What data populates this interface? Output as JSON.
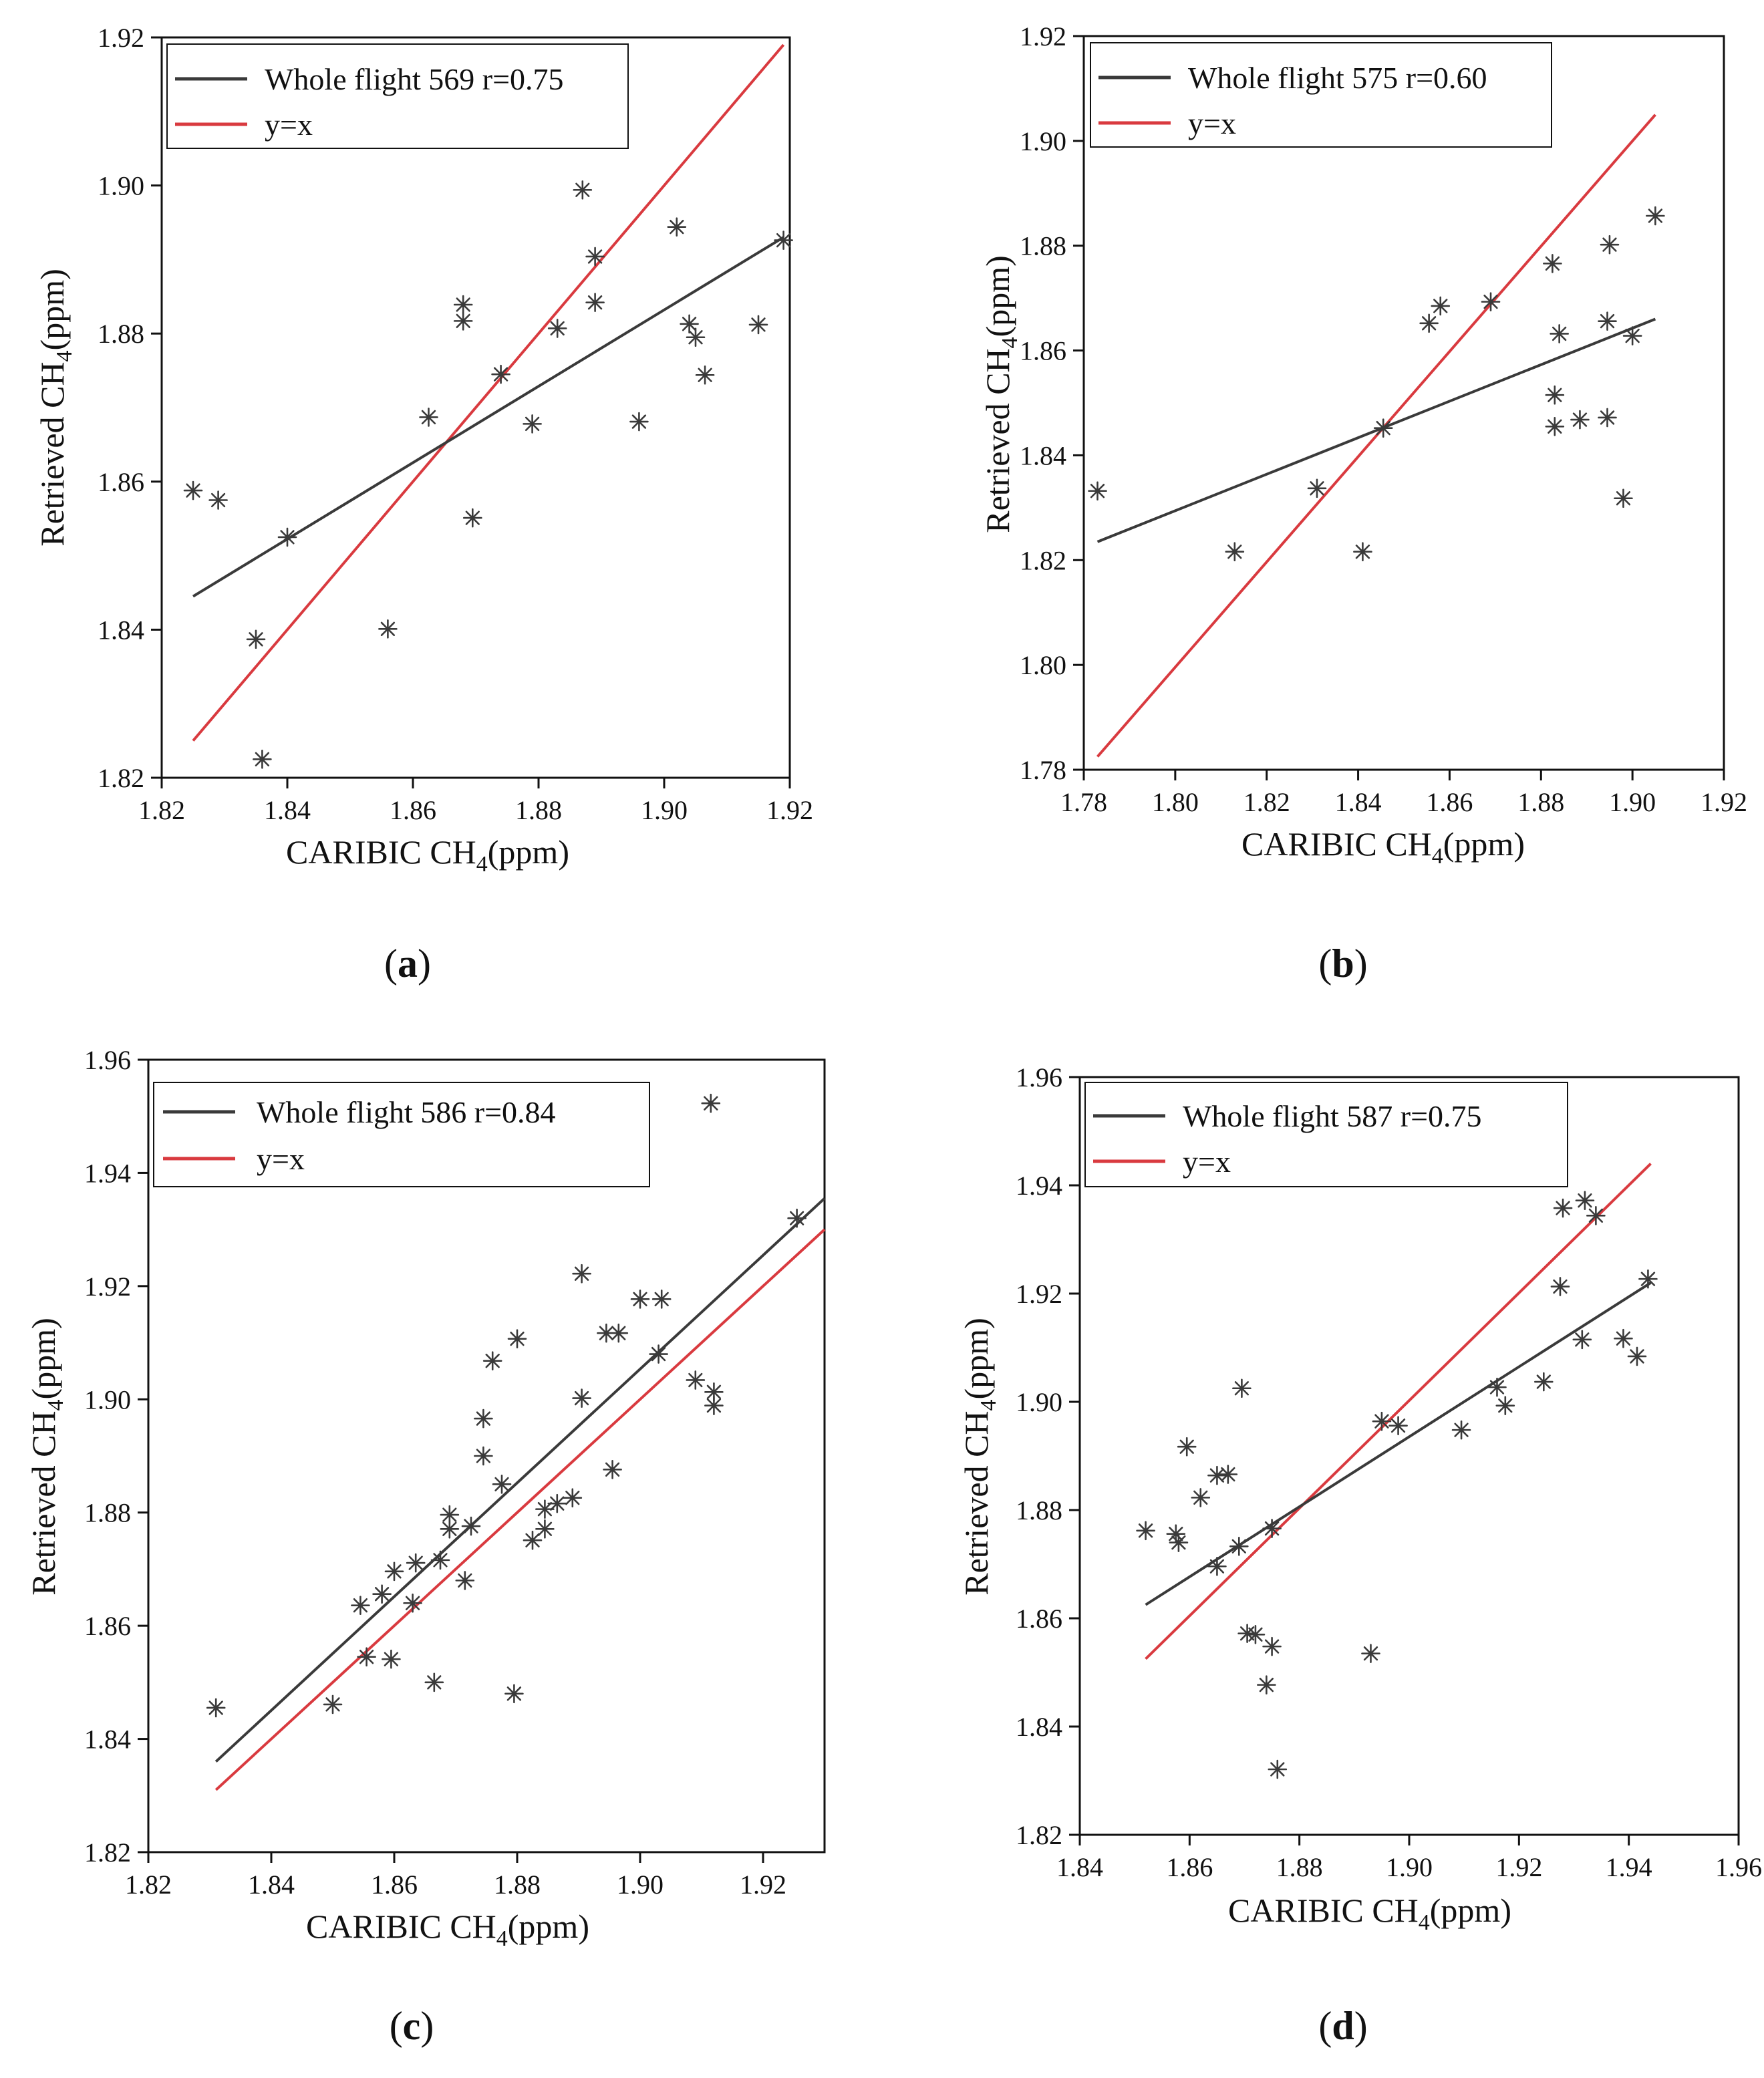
{
  "colors": {
    "regression": "#3a3a3a",
    "identity": "#d93a3f",
    "marker": "#3a3a3a",
    "axis": "#111111"
  },
  "chart_data": [
    {
      "type": "scatter",
      "panel_label": "a",
      "xlabel": "CARIBIC CH",
      "xlabel_sub": "4",
      "xlabel_tail": "(ppm)",
      "ylabel": "Retrieved CH",
      "ylabel_sub": "4",
      "ylabel_tail": "(ppm)",
      "xlim": [
        1.82,
        1.92
      ],
      "ylim": [
        1.82,
        1.92
      ],
      "xticks": [
        "1.82",
        "1.84",
        "1.86",
        "1.88",
        "1.90",
        "1.92"
      ],
      "yticks": [
        "1.82",
        "1.84",
        "1.86",
        "1.88",
        "1.90",
        "1.92"
      ],
      "legend": [
        {
          "label": "Whole flight 569  r=0.75",
          "series": "regression"
        },
        {
          "label": "y=x",
          "series": "identity"
        }
      ],
      "lines": {
        "regression": [
          [
            1.825,
            1.8445
          ],
          [
            1.919,
            1.893
          ]
        ],
        "identity": [
          [
            1.825,
            1.825
          ],
          [
            1.919,
            1.919
          ]
        ]
      },
      "points": [
        [
          1.825,
          1.8588
        ],
        [
          1.829,
          1.8575
        ],
        [
          1.835,
          1.8387
        ],
        [
          1.836,
          1.8225
        ],
        [
          1.84,
          1.8525
        ],
        [
          1.856,
          1.8401
        ],
        [
          1.8625,
          1.8687
        ],
        [
          1.868,
          1.8839
        ],
        [
          1.868,
          1.8817
        ],
        [
          1.8695,
          1.8551
        ],
        [
          1.874,
          1.8745
        ],
        [
          1.879,
          1.8678
        ],
        [
          1.883,
          1.8807
        ],
        [
          1.887,
          1.8994
        ],
        [
          1.889,
          1.8904
        ],
        [
          1.889,
          1.8842
        ],
        [
          1.896,
          1.8681
        ],
        [
          1.902,
          1.8944
        ],
        [
          1.904,
          1.8813
        ],
        [
          1.905,
          1.8795
        ],
        [
          1.9065,
          1.8744
        ],
        [
          1.915,
          1.8812
        ],
        [
          1.919,
          1.8926
        ]
      ]
    },
    {
      "type": "scatter",
      "panel_label": "b",
      "xlabel": "CARIBIC CH",
      "xlabel_sub": "4",
      "xlabel_tail": "(ppm)",
      "ylabel": "Retrieved CH",
      "ylabel_sub": "4",
      "ylabel_tail": "(ppm)",
      "xlim": [
        1.78,
        1.92
      ],
      "ylim": [
        1.78,
        1.92
      ],
      "xticks": [
        "1.78",
        "1.80",
        "1.82",
        "1.84",
        "1.86",
        "1.88",
        "1.90",
        "1.92"
      ],
      "yticks": [
        "1.78",
        "1.80",
        "1.82",
        "1.84",
        "1.86",
        "1.88",
        "1.90",
        "1.92"
      ],
      "legend": [
        {
          "label": "Whole flight 575  r=0.60",
          "series": "regression"
        },
        {
          "label": "y=x",
          "series": "identity"
        }
      ],
      "lines": {
        "regression": [
          [
            1.783,
            1.8235
          ],
          [
            1.905,
            1.866
          ]
        ],
        "identity": [
          [
            1.783,
            1.7825
          ],
          [
            1.905,
            1.905
          ]
        ]
      },
      "points": [
        [
          1.783,
          1.8332
        ],
        [
          1.813,
          1.8216
        ],
        [
          1.831,
          1.8337
        ],
        [
          1.841,
          1.8216
        ],
        [
          1.8455,
          1.8452
        ],
        [
          1.8555,
          1.8652
        ],
        [
          1.858,
          1.8685
        ],
        [
          1.869,
          1.8693
        ],
        [
          1.8825,
          1.8766
        ],
        [
          1.883,
          1.8515
        ],
        [
          1.883,
          1.8455
        ],
        [
          1.884,
          1.8632
        ],
        [
          1.8885,
          1.8468
        ],
        [
          1.8945,
          1.8656
        ],
        [
          1.8945,
          1.8472
        ],
        [
          1.895,
          1.8802
        ],
        [
          1.898,
          1.8318
        ],
        [
          1.9,
          1.8628
        ],
        [
          1.905,
          1.8857
        ]
      ]
    },
    {
      "type": "scatter",
      "panel_label": "c",
      "xlabel": "CARIBIC CH",
      "xlabel_sub": "4",
      "xlabel_tail": "(ppm)",
      "ylabel": "Retrieved CH",
      "ylabel_sub": "4",
      "ylabel_tail": "(ppm)",
      "xlim": [
        1.82,
        1.93
      ],
      "ylim": [
        1.82,
        1.96
      ],
      "xticks": [
        "1.82",
        "1.84",
        "1.86",
        "1.88",
        "1.90",
        "1.92"
      ],
      "yticks": [
        "1.82",
        "1.84",
        "1.86",
        "1.88",
        "1.90",
        "1.92",
        "1.94",
        "1.96"
      ],
      "legend": [
        {
          "label": "Whole flight 586  r=0.84",
          "series": "regression"
        },
        {
          "label": "y=x",
          "series": "identity"
        }
      ],
      "lines": {
        "regression": [
          [
            1.831,
            1.836
          ],
          [
            1.93,
            1.9355
          ]
        ],
        "identity": [
          [
            1.831,
            1.831
          ],
          [
            1.93,
            1.93
          ]
        ]
      },
      "points": [
        [
          1.831,
          1.8455
        ],
        [
          1.85,
          1.8461
        ],
        [
          1.8545,
          1.8636
        ],
        [
          1.8555,
          1.8545
        ],
        [
          1.858,
          1.8656
        ],
        [
          1.8595,
          1.8541
        ],
        [
          1.86,
          1.8696
        ],
        [
          1.863,
          1.864
        ],
        [
          1.8635,
          1.8711
        ],
        [
          1.8665,
          1.85
        ],
        [
          1.8675,
          1.8716
        ],
        [
          1.869,
          1.8796
        ],
        [
          1.869,
          1.8771
        ],
        [
          1.8715,
          1.868
        ],
        [
          1.8725,
          1.8776
        ],
        [
          1.8745,
          1.8966
        ],
        [
          1.8745,
          1.89
        ],
        [
          1.876,
          1.9068
        ],
        [
          1.8775,
          1.885
        ],
        [
          1.8795,
          1.848
        ],
        [
          1.88,
          1.9107
        ],
        [
          1.8825,
          1.8751
        ],
        [
          1.8845,
          1.8806
        ],
        [
          1.8845,
          1.8771
        ],
        [
          1.8865,
          1.8816
        ],
        [
          1.889,
          1.8826
        ],
        [
          1.8905,
          1.9002
        ],
        [
          1.8905,
          1.9222
        ],
        [
          1.8945,
          1.9117
        ],
        [
          1.8955,
          1.8876
        ],
        [
          1.8965,
          1.9117
        ],
        [
          1.9,
          1.9177
        ],
        [
          1.9035,
          1.9177
        ],
        [
          1.903,
          1.908
        ],
        [
          1.909,
          1.9034
        ],
        [
          1.9115,
          1.9523
        ],
        [
          1.912,
          1.9013
        ],
        [
          1.912,
          1.8989
        ],
        [
          1.9255,
          1.932
        ]
      ]
    },
    {
      "type": "scatter",
      "panel_label": "d",
      "xlabel": "CARIBIC CH",
      "xlabel_sub": "4",
      "xlabel_tail": "(ppm)",
      "ylabel": "Retrieved CH",
      "ylabel_sub": "4",
      "ylabel_tail": "(ppm)",
      "xlim": [
        1.84,
        1.96
      ],
      "ylim": [
        1.82,
        1.96
      ],
      "xticks": [
        "1.84",
        "1.86",
        "1.88",
        "1.90",
        "1.92",
        "1.94",
        "1.96"
      ],
      "yticks": [
        "1.82",
        "1.84",
        "1.86",
        "1.88",
        "1.90",
        "1.92",
        "1.94",
        "1.96"
      ],
      "legend": [
        {
          "label": "Whole flight 587  r=0.75",
          "series": "regression"
        },
        {
          "label": "y=x",
          "series": "identity"
        }
      ],
      "lines": {
        "regression": [
          [
            1.852,
            1.8625
          ],
          [
            1.944,
            1.922
          ]
        ],
        "identity": [
          [
            1.852,
            1.8525
          ],
          [
            1.944,
            1.944
          ]
        ]
      },
      "points": [
        [
          1.852,
          1.8762
        ],
        [
          1.8575,
          1.8756
        ],
        [
          1.858,
          1.874
        ],
        [
          1.8595,
          1.8917
        ],
        [
          1.862,
          1.8823
        ],
        [
          1.865,
          1.8696
        ],
        [
          1.865,
          1.8864
        ],
        [
          1.867,
          1.8866
        ],
        [
          1.869,
          1.8733
        ],
        [
          1.8695,
          1.9025
        ],
        [
          1.8705,
          1.8572
        ],
        [
          1.872,
          1.857
        ],
        [
          1.874,
          1.8477
        ],
        [
          1.875,
          1.8548
        ],
        [
          1.875,
          1.8766
        ],
        [
          1.876,
          1.8321
        ],
        [
          1.893,
          1.8535
        ],
        [
          1.895,
          1.8964
        ],
        [
          1.898,
          1.8956
        ],
        [
          1.9095,
          1.8948
        ],
        [
          1.916,
          1.9027
        ],
        [
          1.9175,
          1.8993
        ],
        [
          1.9245,
          1.9037
        ],
        [
          1.9275,
          1.9213
        ],
        [
          1.928,
          1.9358
        ],
        [
          1.9315,
          1.9115
        ],
        [
          1.932,
          1.9372
        ],
        [
          1.934,
          1.9344
        ],
        [
          1.939,
          1.9117
        ],
        [
          1.9415,
          1.9084
        ],
        [
          1.9435,
          1.9227
        ]
      ]
    }
  ]
}
